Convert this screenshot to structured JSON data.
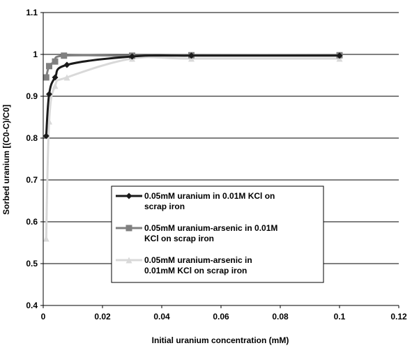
{
  "chart_data": {
    "type": "line",
    "title": "",
    "xlabel": "Initial uranium concentration (mM)",
    "ylabel": "Sorbed uranium [(C0-C)/C0]",
    "xlim": [
      0,
      0.12
    ],
    "ylim": [
      0.4,
      1.1
    ],
    "x_ticks": [
      "0",
      "0.02",
      "0.04",
      "0.06",
      "0.08",
      "0.1",
      "0.12"
    ],
    "y_ticks": [
      "0.4",
      "0.5",
      "0.6",
      "0.7",
      "0.8",
      "0.9",
      "1",
      "1.1"
    ],
    "grid": "horizontal",
    "legend_position": "center",
    "series": [
      {
        "name_lines": [
          "0.05mM uranium in 0.01M KCl on",
          "scrap iron"
        ],
        "color": "#1a1a1a",
        "marker": "diamond",
        "x": [
          0.001,
          0.002,
          0.004,
          0.008,
          0.03,
          0.05,
          0.1
        ],
        "y": [
          0.805,
          0.905,
          0.945,
          0.975,
          0.995,
          0.997,
          0.997
        ]
      },
      {
        "name_lines": [
          "0.05mM uranium-arsenic in 0.01M",
          "KCl on scrap iron"
        ],
        "color": "#808080",
        "marker": "square",
        "x": [
          0.001,
          0.002,
          0.004,
          0.007,
          0.03,
          0.05,
          0.1
        ],
        "y": [
          0.945,
          0.972,
          0.983,
          0.997,
          0.997,
          0.998,
          0.998
        ]
      },
      {
        "name_lines": [
          "0.05mM uranium-arsenic in",
          "0.01mM KCl on scrap iron"
        ],
        "color": "#d9d9d9",
        "marker": "triangle",
        "x": [
          0.001,
          0.002,
          0.004,
          0.008,
          0.03,
          0.05,
          0.1
        ],
        "y": [
          0.56,
          0.84,
          0.925,
          0.945,
          0.99,
          0.99,
          0.99
        ]
      }
    ]
  }
}
